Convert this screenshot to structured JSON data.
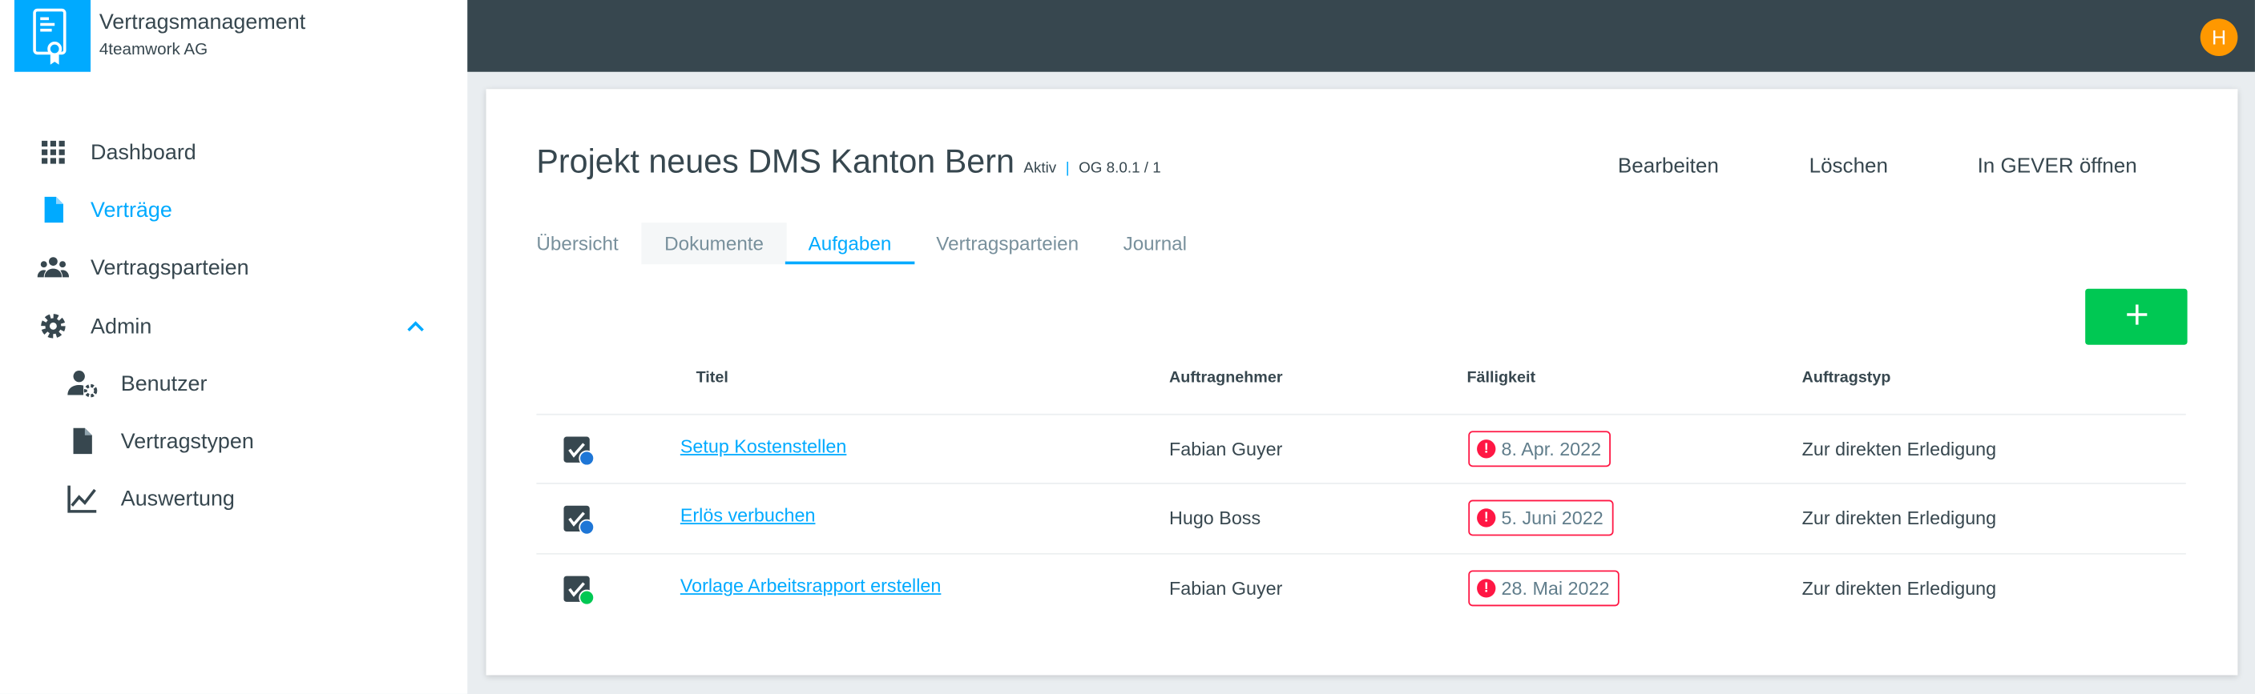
{
  "app": {
    "title": "Vertragsmanagement",
    "company": "4teamwork AG",
    "logo_icon": "contract-certificate-icon",
    "brand_color": "#00aaff"
  },
  "user": {
    "avatar_initial": "H",
    "avatar_color": "#ff9800"
  },
  "sidebar": {
    "items": [
      {
        "label": "Dashboard",
        "icon": "grid-icon"
      },
      {
        "label": "Verträge",
        "icon": "document-icon",
        "active": true
      },
      {
        "label": "Vertragsparteien",
        "icon": "people-icon"
      },
      {
        "label": "Admin",
        "icon": "gear-icon",
        "expanded": true
      },
      {
        "label": "Benutzer",
        "icon": "user-settings-icon"
      },
      {
        "label": "Vertragstypen",
        "icon": "document-icon"
      },
      {
        "label": "Auswertung",
        "icon": "chart-line-icon"
      }
    ]
  },
  "page": {
    "title": "Projekt neues DMS Kanton Bern",
    "status": "Aktiv",
    "separator": "|",
    "reference": "OG 8.0.1 / 1",
    "actions": {
      "edit": "Bearbeiten",
      "delete": "Löschen",
      "open_gever": "In GEVER öffnen"
    }
  },
  "tabs": [
    {
      "label": "Übersicht"
    },
    {
      "label": "Dokumente"
    },
    {
      "label": "Aufgaben",
      "selected": true
    },
    {
      "label": "Vertragsparteien"
    },
    {
      "label": "Journal"
    }
  ],
  "add_button": {
    "label": "+",
    "color": "#00c853"
  },
  "table": {
    "headers": [
      "Titel",
      "Auftragnehmer",
      "Fälligkeit",
      "Auftragstyp"
    ],
    "rows": [
      {
        "title": "Setup Kostenstellen",
        "assignee": "Fabian Guyer",
        "due": "8. Apr. 2022",
        "type": "Zur direkten Erledigung",
        "status_color": "#1e76d6"
      },
      {
        "title": "Erlös verbuchen",
        "assignee": "Hugo Boss",
        "due": "5. Juni 2022",
        "type": "Zur direkten Erledigung",
        "status_color": "#1e76d6"
      },
      {
        "title": "Vorlage Arbeitsrapport erstellen",
        "assignee": "Fabian Guyer",
        "due": "28. Mai 2022",
        "type": "Zur direkten Erledigung",
        "status_color": "#00c853"
      }
    ]
  }
}
